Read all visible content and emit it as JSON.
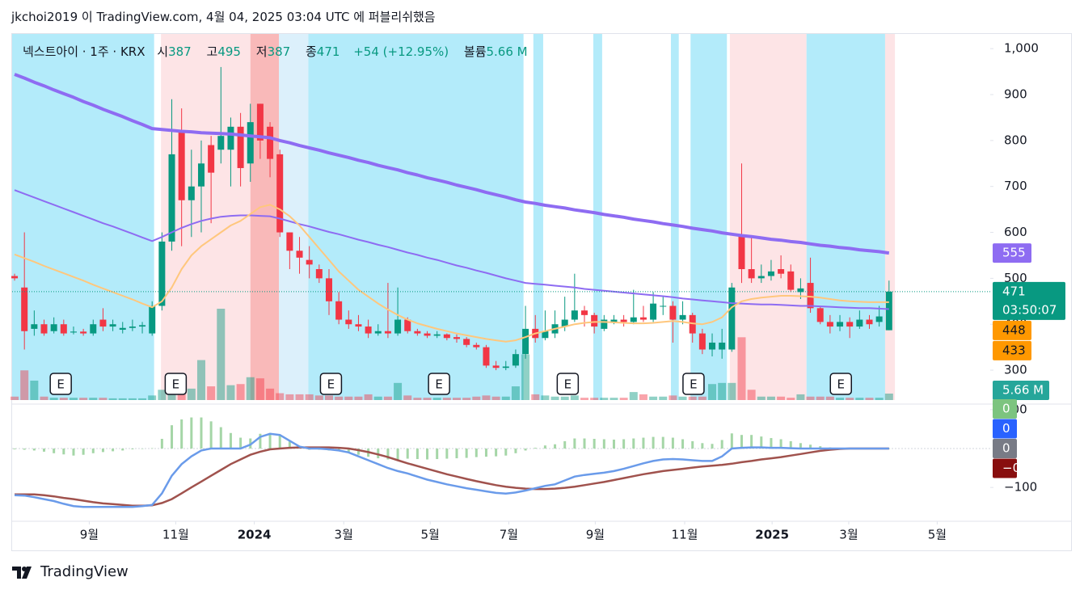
{
  "header": {
    "publisher": "jkchoi2019 이 TradingView.com, 4월 04, 2025 03:04 UTC 에 퍼블리쉬했음"
  },
  "footer": {
    "brand": "TradingView"
  },
  "chart_data": {
    "type": "candlestick",
    "symbol": "넥스트아이 · 1주 · KRX",
    "legend_labels": {
      "open": "시",
      "high": "고",
      "low": "저",
      "close": "종",
      "volume": "볼륨"
    },
    "change_label": "+54 (+12.95%)",
    "countdown": "03:50:07",
    "up_color": "#089981",
    "down_color": "#f23645",
    "open": [
      505,
      480,
      390,
      400,
      385,
      400,
      382,
      384,
      380,
      410,
      395,
      388,
      392,
      395,
      380,
      440,
      580,
      820,
      670,
      700,
      790,
      780,
      780,
      830,
      750,
      880,
      830,
      770,
      600,
      560,
      540,
      520,
      500,
      450,
      410,
      400,
      395,
      380,
      385,
      380,
      410,
      385,
      380,
      375,
      378,
      372,
      368,
      355,
      350,
      310,
      305,
      310,
      335,
      390,
      370,
      380,
      395,
      410,
      430,
      420,
      390,
      405,
      410,
      405,
      415,
      410,
      440,
      440,
      410,
      420,
      380,
      345,
      345,
      345,
      595,
      520,
      500,
      505,
      520,
      515,
      470,
      490,
      435,
      405,
      395,
      405,
      395,
      410,
      405,
      387
    ],
    "high": [
      510,
      600,
      430,
      410,
      415,
      410,
      395,
      390,
      410,
      435,
      410,
      405,
      410,
      405,
      450,
      600,
      890,
      870,
      780,
      800,
      810,
      960,
      850,
      860,
      880,
      880,
      840,
      780,
      600,
      590,
      570,
      530,
      520,
      470,
      430,
      420,
      410,
      400,
      490,
      480,
      415,
      390,
      385,
      385,
      380,
      378,
      372,
      360,
      355,
      320,
      320,
      345,
      440,
      420,
      430,
      430,
      460,
      510,
      440,
      425,
      420,
      420,
      420,
      475,
      440,
      470,
      460,
      450,
      450,
      425,
      390,
      380,
      390,
      490,
      750,
      590,
      530,
      540,
      550,
      530,
      500,
      545,
      440,
      420,
      420,
      415,
      430,
      420,
      440,
      495
    ],
    "low": [
      495,
      345,
      375,
      375,
      380,
      375,
      378,
      375,
      375,
      385,
      385,
      380,
      385,
      380,
      375,
      430,
      560,
      570,
      590,
      600,
      620,
      750,
      700,
      700,
      710,
      760,
      720,
      590,
      520,
      510,
      500,
      490,
      420,
      400,
      390,
      385,
      370,
      375,
      370,
      375,
      380,
      375,
      370,
      370,
      365,
      360,
      350,
      345,
      305,
      300,
      300,
      305,
      325,
      360,
      365,
      370,
      385,
      405,
      395,
      380,
      385,
      400,
      395,
      400,
      405,
      405,
      420,
      360,
      400,
      360,
      335,
      330,
      325,
      340,
      490,
      490,
      490,
      495,
      500,
      470,
      455,
      425,
      400,
      380,
      385,
      370,
      390,
      390,
      395,
      387
    ],
    "close": [
      500,
      385,
      400,
      380,
      400,
      380,
      384,
      380,
      400,
      395,
      400,
      392,
      395,
      398,
      440,
      580,
      770,
      670,
      700,
      750,
      730,
      810,
      830,
      740,
      840,
      800,
      760,
      600,
      560,
      545,
      530,
      500,
      450,
      410,
      400,
      395,
      380,
      385,
      380,
      410,
      385,
      380,
      375,
      378,
      370,
      368,
      355,
      350,
      310,
      305,
      308,
      335,
      390,
      370,
      385,
      400,
      410,
      430,
      420,
      395,
      410,
      410,
      405,
      415,
      410,
      445,
      440,
      410,
      420,
      380,
      345,
      360,
      360,
      480,
      520,
      500,
      505,
      515,
      510,
      475,
      478,
      435,
      405,
      395,
      405,
      395,
      410,
      400,
      417,
      471
    ],
    "volume": [
      3,
      26,
      17,
      3,
      2,
      2,
      2,
      2,
      2,
      2,
      1.5,
      1.5,
      1.5,
      1.5,
      4,
      9,
      14,
      16,
      10,
      35,
      12,
      80,
      13,
      14,
      20,
      19,
      10,
      6,
      5,
      5,
      5,
      4,
      4,
      3,
      3,
      3,
      5,
      3,
      3,
      15,
      4,
      2,
      2,
      2,
      2,
      2,
      2,
      3,
      4,
      3,
      3,
      12,
      40,
      5,
      4,
      3,
      3,
      4,
      2,
      2,
      2,
      2,
      2,
      7,
      5,
      3,
      3,
      4,
      3,
      3,
      3,
      14,
      15,
      15,
      55,
      9,
      3,
      3,
      3,
      2,
      5,
      3,
      3,
      3,
      2,
      2,
      2,
      2,
      2,
      5.66
    ],
    "volume_label": "5.66 M",
    "ylim": [
      235,
      1032
    ],
    "yticks": [
      {
        "value": 1000,
        "label": "1,000"
      },
      900,
      800,
      700,
      600,
      500,
      400,
      300
    ],
    "xlim": [
      -0.25,
      99.3
    ],
    "xticks": [
      {
        "value": 7.6,
        "label": "9월"
      },
      {
        "value": 16.4,
        "label": "11월"
      },
      {
        "value": 24.4,
        "label": "2024"
      },
      {
        "value": 33.5,
        "label": "3월"
      },
      {
        "value": 42.3,
        "label": "5월"
      },
      {
        "value": 50.3,
        "label": "7월"
      },
      {
        "value": 59.1,
        "label": "9월"
      },
      {
        "value": 68.2,
        "label": "11월"
      },
      {
        "value": 77.1,
        "label": "2025"
      },
      {
        "value": 84.9,
        "label": "3월"
      },
      {
        "value": 93.9,
        "label": "5월"
      }
    ],
    "ma": [
      {
        "color": "#8e6cf2",
        "width": 4,
        "tag_color": "#8e6cf2",
        "values": [
          944,
          936,
          927,
          919,
          910,
          902,
          894,
          885,
          877,
          868,
          860,
          852,
          843,
          835,
          826,
          824,
          822,
          820,
          819,
          817,
          816,
          815,
          814,
          812,
          810,
          808,
          806,
          800,
          795,
          789,
          784,
          779,
          773,
          768,
          763,
          757,
          752,
          746,
          741,
          736,
          730,
          725,
          719,
          714,
          709,
          703,
          698,
          693,
          687,
          682,
          677,
          671,
          666,
          663,
          659,
          656,
          653,
          649,
          646,
          643,
          639,
          636,
          633,
          629,
          626,
          623,
          619,
          616,
          613,
          609,
          606,
          603,
          599,
          596,
          593,
          591,
          588,
          585,
          583,
          580,
          578,
          575,
          572,
          570,
          567,
          565,
          562,
          560,
          558,
          555
        ]
      },
      {
        "color": "#8e6cf2",
        "width": 2,
        "tag_color": "#ff9800",
        "values": [
          692,
          684,
          676,
          668,
          660,
          652,
          644,
          636,
          628,
          620,
          613,
          605,
          597,
          589,
          581,
          590,
          600,
          610,
          618,
          625,
          630,
          634,
          636,
          637,
          637,
          636,
          635,
          630,
          624,
          618,
          613,
          607,
          601,
          596,
          590,
          584,
          579,
          573,
          568,
          562,
          556,
          551,
          545,
          540,
          534,
          528,
          523,
          517,
          512,
          506,
          500,
          495,
          490,
          488,
          486,
          484,
          482,
          480,
          477,
          475,
          473,
          471,
          469,
          467,
          465,
          463,
          461,
          459,
          456,
          454,
          452,
          450,
          448,
          446,
          445,
          444,
          443,
          443,
          442,
          441,
          440,
          440,
          439,
          438,
          437,
          436,
          435,
          435,
          434,
          433
        ]
      },
      {
        "color": "#ffc77d",
        "width": 2,
        "tag_color": "#ff9800",
        "values": [
          552,
          544,
          536,
          527,
          519,
          511,
          503,
          495,
          486,
          478,
          470,
          462,
          454,
          445,
          437,
          450,
          480,
          520,
          550,
          570,
          585,
          600,
          615,
          625,
          640,
          655,
          660,
          650,
          635,
          615,
          590,
          565,
          540,
          515,
          495,
          475,
          460,
          445,
          432,
          420,
          410,
          402,
          396,
          390,
          385,
          380,
          376,
          372,
          368,
          365,
          362,
          365,
          372,
          380,
          385,
          390,
          395,
          400,
          403,
          405,
          405,
          404,
          403,
          402,
          402,
          403,
          405,
          407,
          405,
          402,
          400,
          405,
          415,
          437,
          450,
          455,
          458,
          460,
          462,
          462,
          461,
          460,
          458,
          455,
          452,
          450,
          449,
          448,
          448,
          448
        ]
      }
    ],
    "bands": [
      {
        "from": -0.25,
        "to": 14.2,
        "color": "#b3ebfa"
      },
      {
        "from": 14.9,
        "to": 24.0,
        "color": "#fde4e6"
      },
      {
        "from": 24.0,
        "to": 26.9,
        "color": "#f9b9b9"
      },
      {
        "from": 26.9,
        "to": 29.9,
        "color": "#dcf0fb"
      },
      {
        "from": 29.9,
        "to": 51.8,
        "color": "#b3ebfa"
      },
      {
        "from": 52.8,
        "to": 53.8,
        "color": "#b3ebfa"
      },
      {
        "from": 58.9,
        "to": 59.8,
        "color": "#b3ebfa"
      },
      {
        "from": 66.8,
        "to": 67.6,
        "color": "#b3ebfa"
      },
      {
        "from": 68.8,
        "to": 72.5,
        "color": "#b3ebfa"
      },
      {
        "from": 72.8,
        "to": 80.6,
        "color": "#fde4e6"
      },
      {
        "from": 80.6,
        "to": 88.6,
        "color": "#b3ebfa"
      },
      {
        "from": 88.6,
        "to": 89.6,
        "color": "#fde4e6"
      }
    ],
    "earnings": [
      {
        "x": 4.7,
        "label": "E"
      },
      {
        "x": 16.4,
        "label": "E"
      },
      {
        "x": 32.2,
        "label": "E"
      },
      {
        "x": 43.2,
        "label": "E"
      },
      {
        "x": 56.3,
        "label": "E"
      },
      {
        "x": 69.1,
        "label": "E"
      },
      {
        "x": 84.1,
        "label": "E"
      }
    ],
    "macd": {
      "ylim": [
        -187,
        104
      ],
      "yticks": [
        100,
        {
          "value": -100,
          "label": "−100"
        }
      ],
      "histogram_color": "#a5d6a7",
      "macd_color": "#6a9bea",
      "signal_color": "#a0524d",
      "histogram": [
        -2,
        -3,
        -5,
        -8,
        -12,
        -15,
        -18,
        -16,
        -12,
        -9,
        -7,
        -5,
        -2,
        0,
        1,
        25,
        60,
        75,
        80,
        80,
        70,
        55,
        40,
        28,
        26,
        38,
        40,
        35,
        18,
        2,
        -3,
        -3,
        -5,
        -7,
        -10,
        -16,
        -21,
        -25,
        -28,
        -28,
        -26,
        -27,
        -28,
        -27,
        -26,
        -25,
        -24,
        -22,
        -21,
        -20,
        -18,
        -12,
        -5,
        2,
        8,
        11,
        19,
        26,
        26,
        25,
        24,
        23,
        24,
        26,
        28,
        30,
        30,
        28,
        24,
        19,
        14,
        12,
        22,
        39,
        35,
        35,
        31,
        27,
        24,
        19,
        14,
        10,
        6,
        3,
        1,
        0,
        0,
        0,
        0,
        0
      ],
      "macd": [
        -120,
        -121,
        -125,
        -130,
        -135,
        -142,
        -148,
        -150,
        -150,
        -150,
        -150,
        -150,
        -150,
        -148,
        -145,
        -115,
        -70,
        -40,
        -20,
        -5,
        0,
        0,
        0,
        0,
        10,
        30,
        38,
        35,
        20,
        5,
        0,
        0,
        -2,
        -5,
        -10,
        -20,
        -30,
        -40,
        -50,
        -58,
        -64,
        -72,
        -80,
        -86,
        -92,
        -97,
        -102,
        -106,
        -110,
        -114,
        -116,
        -113,
        -108,
        -102,
        -96,
        -92,
        -82,
        -72,
        -68,
        -65,
        -62,
        -58,
        -52,
        -45,
        -38,
        -32,
        -28,
        -27,
        -28,
        -30,
        -32,
        -32,
        -20,
        0,
        2,
        3,
        3,
        2,
        2,
        1,
        0,
        0,
        0,
        0,
        0,
        0,
        0,
        0,
        0,
        0
      ],
      "signal": [
        -118,
        -118,
        -118,
        -120,
        -123,
        -127,
        -130,
        -134,
        -138,
        -141,
        -143,
        -145,
        -147,
        -147,
        -146,
        -140,
        -130,
        -115,
        -100,
        -85,
        -70,
        -55,
        -40,
        -28,
        -16,
        -8,
        -2,
        0,
        2,
        3,
        3,
        3,
        3,
        2,
        0,
        -4,
        -9,
        -15,
        -22,
        -30,
        -38,
        -45,
        -52,
        -59,
        -66,
        -72,
        -78,
        -84,
        -89,
        -94,
        -98,
        -101,
        -103,
        -104,
        -104,
        -103,
        -101,
        -98,
        -94,
        -90,
        -86,
        -81,
        -76,
        -71,
        -66,
        -62,
        -58,
        -55,
        -52,
        -49,
        -46,
        -44,
        -42,
        -39,
        -35,
        -32,
        -28,
        -25,
        -22,
        -18,
        -14,
        -10,
        -6,
        -3,
        -1,
        0,
        0,
        0,
        0,
        0
      ],
      "tags": [
        {
          "label": "0",
          "color": "#7cc47f"
        },
        {
          "label": "0",
          "color": "#2962ff"
        },
        {
          "label": "0",
          "color": "#787b86"
        },
        {
          "label": "−0",
          "color": "#880e0e"
        }
      ]
    }
  }
}
